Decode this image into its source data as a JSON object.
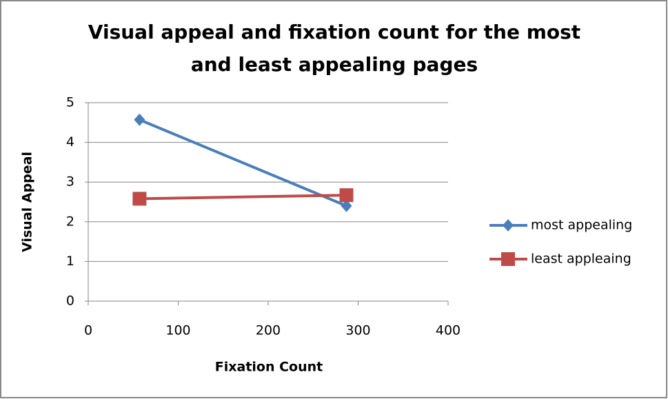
{
  "chart_data": {
    "type": "line",
    "title": [
      "Visual appeal and fixation count for the most",
      "and least appealing pages"
    ],
    "x_label": "Fixation Count",
    "y_label": "Visual Appeal",
    "x": [
      57,
      287
    ],
    "series": [
      {
        "name": "most appealing",
        "color": "#4a7ebb",
        "marker": "diamond",
        "values": [
          4.57,
          2.4
        ]
      },
      {
        "name": "least appleaing",
        "color": "#be4b48",
        "marker": "square",
        "values": [
          2.58,
          2.67
        ]
      }
    ],
    "xlim": [
      0,
      400
    ],
    "xticks": [
      0,
      100,
      200,
      300,
      400
    ],
    "ylim": [
      0,
      5
    ],
    "yticks": [
      0,
      1,
      2,
      3,
      4,
      5
    ],
    "grid": true,
    "legend": "right"
  }
}
